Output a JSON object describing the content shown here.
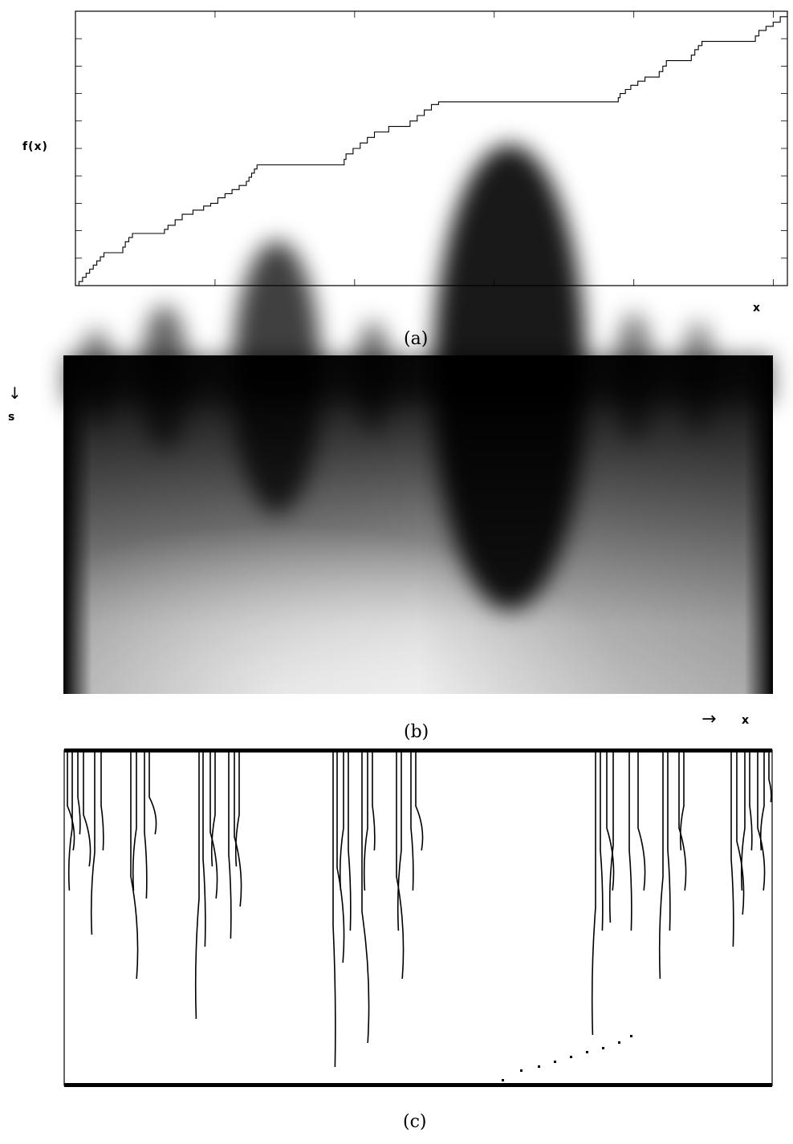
{
  "figure": {
    "panel_a": {
      "caption": "(a)",
      "y_label": "f(x)",
      "x_label": "x",
      "type": "devil's staircase line plot"
    },
    "panel_b": {
      "caption": "(b)",
      "s_label": "s",
      "x_label": "x",
      "arrow_down": "↓",
      "arrow_right": "→",
      "type": "grayscale wavelet transform map"
    },
    "panel_c": {
      "caption": "(c)",
      "type": "wavelet modulus maxima lines"
    }
  },
  "chart_data": [
    {
      "type": "line",
      "title": "",
      "xlabel": "x",
      "ylabel": "f(x)",
      "xlim": [
        0,
        1
      ],
      "ylim": [
        0,
        1
      ],
      "grid": false,
      "series": [
        {
          "values_xy": [
            [
              0.0,
              0.0
            ],
            [
              0.005,
              0.015
            ],
            [
              0.01,
              0.03
            ],
            [
              0.02,
              0.06
            ],
            [
              0.03,
              0.09
            ],
            [
              0.04,
              0.12
            ],
            [
              0.063,
              0.12
            ],
            [
              0.07,
              0.16
            ],
            [
              0.08,
              0.19
            ],
            [
              0.12,
              0.19
            ],
            [
              0.13,
              0.22
            ],
            [
              0.15,
              0.26
            ],
            [
              0.18,
              0.29
            ],
            [
              0.19,
              0.3
            ],
            [
              0.195,
              0.3
            ],
            [
              0.2,
              0.32
            ],
            [
              0.22,
              0.35
            ],
            [
              0.24,
              0.38
            ],
            [
              0.255,
              0.44
            ],
            [
              0.26,
              0.44
            ],
            [
              0.375,
              0.44
            ],
            [
              0.38,
              0.48
            ],
            [
              0.4,
              0.52
            ],
            [
              0.42,
              0.56
            ],
            [
              0.44,
              0.58
            ],
            [
              0.47,
              0.6
            ],
            [
              0.48,
              0.62
            ],
            [
              0.5,
              0.66
            ],
            [
              0.51,
              0.67
            ],
            [
              0.56,
              0.67
            ],
            [
              0.57,
              0.67
            ],
            [
              0.76,
              0.67
            ],
            [
              0.765,
              0.7
            ],
            [
              0.78,
              0.73
            ],
            [
              0.8,
              0.76
            ],
            [
              0.82,
              0.78
            ],
            [
              0.83,
              0.82
            ],
            [
              0.86,
              0.82
            ],
            [
              0.87,
              0.86
            ],
            [
              0.88,
              0.89
            ],
            [
              0.9,
              0.89
            ],
            [
              0.95,
              0.89
            ],
            [
              0.96,
              0.93
            ],
            [
              0.98,
              0.96
            ],
            [
              0.99,
              0.98
            ],
            [
              1.0,
              1.0
            ]
          ]
        }
      ]
    }
  ]
}
